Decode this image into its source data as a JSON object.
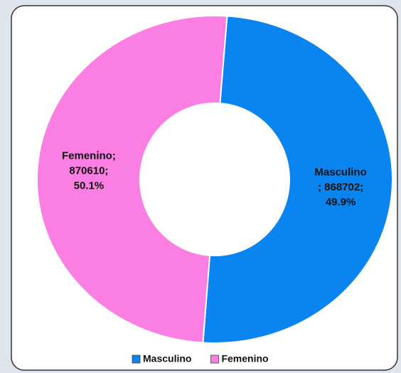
{
  "chart_data": {
    "type": "donut",
    "categories": [
      "Masculino",
      "Femenino"
    ],
    "values": [
      868702,
      870610
    ],
    "value_labels": [
      [
        "Masculino",
        "; 868702;",
        "49.9%"
      ],
      [
        "Femenino;",
        "870610;",
        "50.1%"
      ]
    ],
    "colors": [
      "#0a84ef",
      "#fb7ee2"
    ],
    "legend": "bottom"
  }
}
